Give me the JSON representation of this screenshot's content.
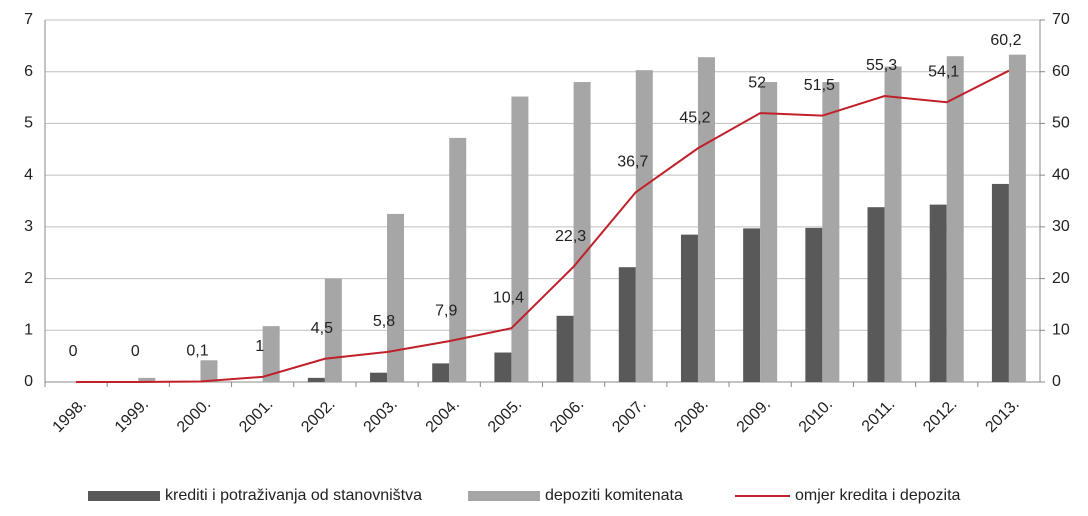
{
  "chart_data": {
    "type": "bar",
    "categories": [
      "1998.",
      "1999.",
      "2000.",
      "2001.",
      "2002.",
      "2003.",
      "2004.",
      "2005.",
      "2006.",
      "2007.",
      "2008.",
      "2009.",
      "2010.",
      "2011.",
      "2012.",
      "2013."
    ],
    "series": [
      {
        "name": "krediti i potraživanja od stanovništva",
        "type": "bar",
        "color": "#595959",
        "values": [
          0,
          0,
          0,
          0,
          0.08,
          0.18,
          0.36,
          0.57,
          1.28,
          2.22,
          2.85,
          2.97,
          2.98,
          3.38,
          3.43,
          3.83
        ]
      },
      {
        "name": "depoziti komitenata",
        "type": "bar",
        "color": "#a6a6a6",
        "values": [
          0.02,
          0.08,
          0.42,
          1.08,
          2.0,
          3.25,
          4.72,
          5.52,
          5.8,
          6.03,
          6.28,
          5.8,
          5.8,
          6.1,
          6.3,
          6.33
        ]
      },
      {
        "name": "omjer kredita i depozita",
        "type": "line",
        "color": "#c0202a",
        "axis": "y2",
        "values": [
          0,
          0,
          0.1,
          1,
          4.5,
          5.8,
          7.9,
          10.4,
          22.3,
          36.7,
          45.2,
          52,
          51.5,
          55.3,
          54.1,
          60.2
        ],
        "value_labels": [
          "0",
          "0",
          "0,1",
          "1",
          "4,5",
          "5,8",
          "7,9",
          "10,4",
          "22,3",
          "36,7",
          "45,2",
          "52",
          "51,5",
          "55,3",
          "54,1",
          "60,2"
        ]
      }
    ],
    "ylim": [
      0,
      7
    ],
    "yticks": [
      0,
      1,
      2,
      3,
      4,
      5,
      6,
      7
    ],
    "y2lim": [
      0,
      70
    ],
    "y2ticks": [
      0,
      10,
      20,
      30,
      40,
      50,
      60,
      70
    ],
    "grid": true,
    "legend": "bottom"
  }
}
